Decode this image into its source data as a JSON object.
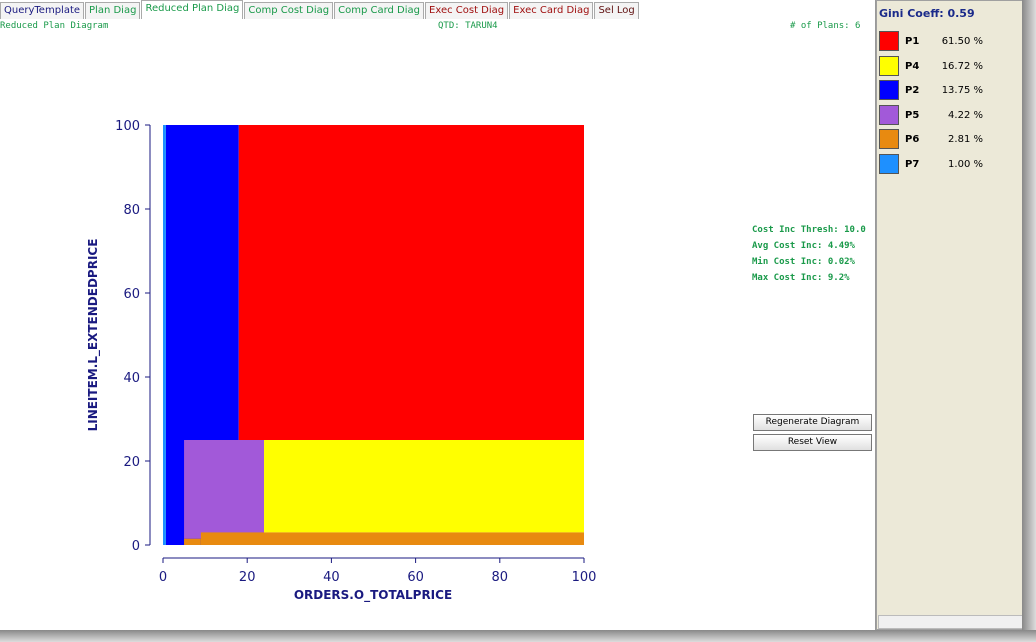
{
  "tabs": [
    {
      "label": "QueryTemplate",
      "color": "#1a1a80"
    },
    {
      "label": "Plan Diag",
      "color": "#1a9a4a"
    },
    {
      "label": "Reduced Plan Diag",
      "color": "#1a9a4a",
      "selected": true
    },
    {
      "label": "Comp Cost Diag",
      "color": "#1a9a4a"
    },
    {
      "label": "Comp Card Diag",
      "color": "#1a9a4a"
    },
    {
      "label": "Exec Cost Diag",
      "color": "#a01010"
    },
    {
      "label": "Exec Card Diag",
      "color": "#a01010"
    },
    {
      "label": "Sel Log",
      "color": "#601010"
    }
  ],
  "header": {
    "left": "Reduced Plan Diagram",
    "center": "QTD: TARUN4",
    "right": "# of Plans: 6"
  },
  "plot": {
    "x_label": "ORDERS.O_TOTALPRICE",
    "y_label": "LINEITEM.L_EXTENDEDPRICE",
    "xlim": [
      0,
      100
    ],
    "ylim": [
      0,
      100
    ],
    "xticks": [
      0,
      20,
      40,
      60,
      80,
      100
    ],
    "yticks": [
      0,
      20,
      40,
      60,
      80,
      100
    ],
    "regions": [
      {
        "color": "#0000ff",
        "x": [
          0.7,
          18
        ],
        "y": [
          0,
          100
        ]
      },
      {
        "color": "#ff0000",
        "x": [
          18,
          100
        ],
        "y": [
          25,
          100
        ]
      },
      {
        "color": "#a259d9",
        "x": [
          5,
          24
        ],
        "y": [
          1.5,
          25
        ]
      },
      {
        "color": "#ffff00",
        "x": [
          24,
          100
        ],
        "y": [
          3,
          25
        ]
      },
      {
        "color": "#e88a10",
        "x": [
          5,
          9
        ],
        "y": [
          0,
          1.5
        ]
      },
      {
        "color": "#e88a10",
        "x": [
          9,
          100
        ],
        "y": [
          0,
          3
        ]
      },
      {
        "color": "#1e90ff",
        "x": [
          0,
          0.7
        ],
        "y": [
          0,
          100
        ]
      }
    ]
  },
  "stats": [
    "Cost Inc Thresh: 10.0",
    "Avg Cost Inc: 4.49%",
    "Min Cost Inc: 0.02%",
    "Max Cost Inc: 9.2%"
  ],
  "buttons": [
    "Regenerate Diagram",
    "Reset View"
  ],
  "sidebar": {
    "gini": "Gini Coeff: 0.59",
    "legend": [
      {
        "label": "P1",
        "value": "61.50 %",
        "color": "#ff0000"
      },
      {
        "label": "P4",
        "value": "16.72 %",
        "color": "#ffff00"
      },
      {
        "label": "P2",
        "value": "13.75 %",
        "color": "#0000ff"
      },
      {
        "label": "P5",
        "value": "4.22 %",
        "color": "#a259d9"
      },
      {
        "label": "P6",
        "value": "2.81 %",
        "color": "#e88a10"
      },
      {
        "label": "P7",
        "value": "1.00 %",
        "color": "#1e90ff"
      }
    ]
  }
}
